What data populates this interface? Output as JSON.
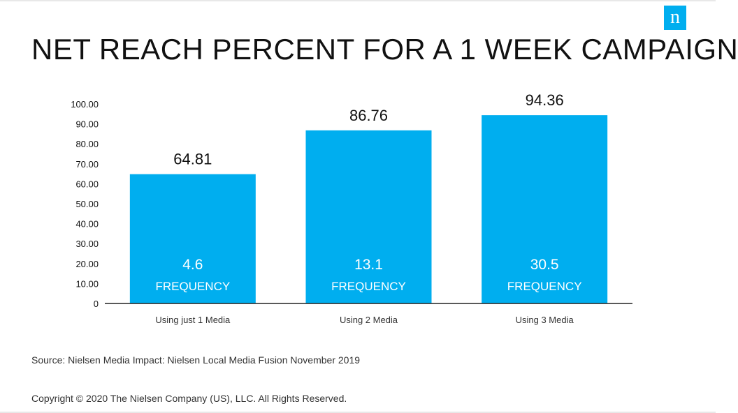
{
  "header": {
    "title": "NET REACH PERCENT FOR A 1 WEEK CAMPAIGN",
    "logo_letter": "n"
  },
  "colors": {
    "bar": "#00aeef",
    "axis": "#222222",
    "text": "#111111",
    "bar_text": "#ffffff"
  },
  "chart_data": {
    "type": "bar",
    "title": "NET REACH PERCENT FOR A 1 WEEK CAMPAIGN",
    "categories": [
      "Using just 1 Media",
      "Using 2 Media",
      "Using 3 Media"
    ],
    "values": [
      64.81,
      86.76,
      94.36
    ],
    "value_labels": [
      "64.81",
      "86.76",
      "94.36"
    ],
    "frequencies": [
      "4.6",
      "13.1",
      "30.5"
    ],
    "frequency_label": "FREQUENCY",
    "yticks": [
      "0",
      "10.00",
      "20.00",
      "30.00",
      "40.00",
      "50.00",
      "60.00",
      "70.00",
      "80.00",
      "90.00",
      "100.00"
    ],
    "ylim": [
      0,
      100
    ],
    "grid": false,
    "legend": "none",
    "xlabel": "",
    "ylabel": ""
  },
  "footer": {
    "source": "Source: Nielsen Media Impact: Nielsen Local Media Fusion November 2019",
    "copyright": "Copyright © 2020 The Nielsen Company (US), LLC. All Rights Reserved."
  }
}
